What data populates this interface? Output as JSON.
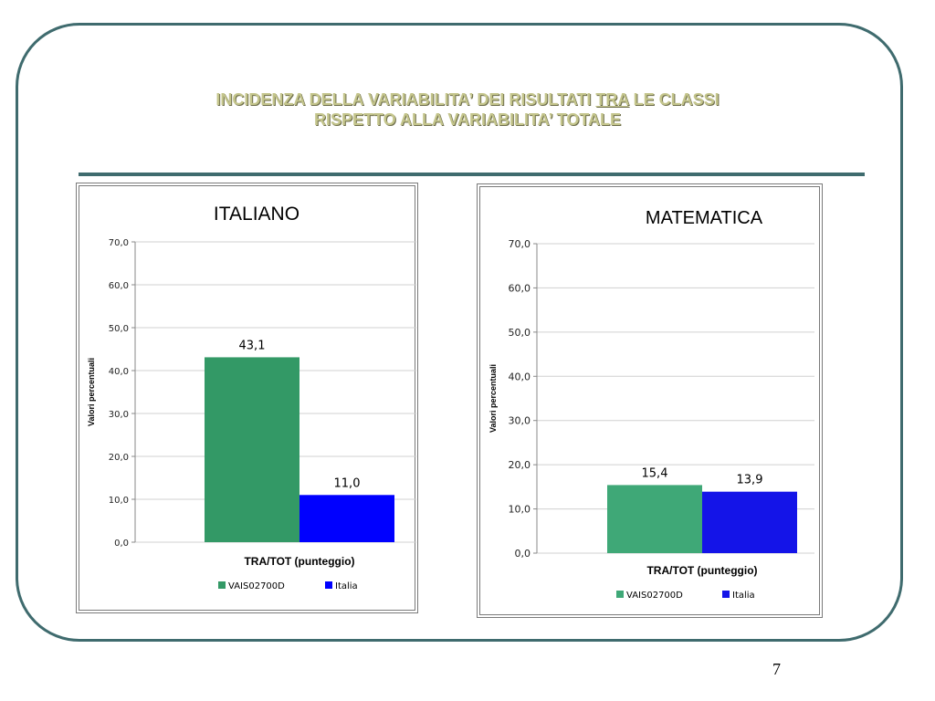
{
  "slide": {
    "title_part1": "INCIDENZA DELLA VARIABILITA’ DEI RISULTATI ",
    "title_tra": "TRA",
    "title_part2": " LE CLASSI",
    "title_line2": "RISPETTO ALLA VARIABILITA’ TOTALE",
    "page_number": "7"
  },
  "colors": {
    "frame": "#3f6b6e",
    "title": "#c4c58c"
  },
  "chart_data": [
    {
      "type": "bar",
      "title": "ITALIANO",
      "xlabel": "TRA/TOT (punteggio)",
      "ylabel": "Valori percentuali",
      "ylim": [
        0,
        70
      ],
      "yticks": [
        "0,0",
        "10,0",
        "20,0",
        "30,0",
        "40,0",
        "50,0",
        "60,0",
        "70,0"
      ],
      "grid": true,
      "legend": "bottom",
      "series": [
        {
          "name": "VAIS02700D",
          "values": [
            43.1
          ],
          "label": "43,1",
          "color": "#339966"
        },
        {
          "name": "Italia",
          "values": [
            11.0
          ],
          "label": "11,0",
          "color": "#0000ff"
        }
      ]
    },
    {
      "type": "bar",
      "title": "MATEMATICA",
      "xlabel": "TRA/TOT (punteggio)",
      "ylabel": "Valori percentuali",
      "ylim": [
        0,
        70
      ],
      "yticks": [
        "0,0",
        "10,0",
        "20,0",
        "30,0",
        "40,0",
        "50,0",
        "60,0",
        "70,0"
      ],
      "grid": true,
      "legend": "bottom",
      "series": [
        {
          "name": "VAIS02700D",
          "values": [
            15.4
          ],
          "label": "15,4",
          "color": "#3fa877"
        },
        {
          "name": "Italia",
          "values": [
            13.9
          ],
          "label": "13,9",
          "color": "#1414e8"
        }
      ]
    }
  ]
}
